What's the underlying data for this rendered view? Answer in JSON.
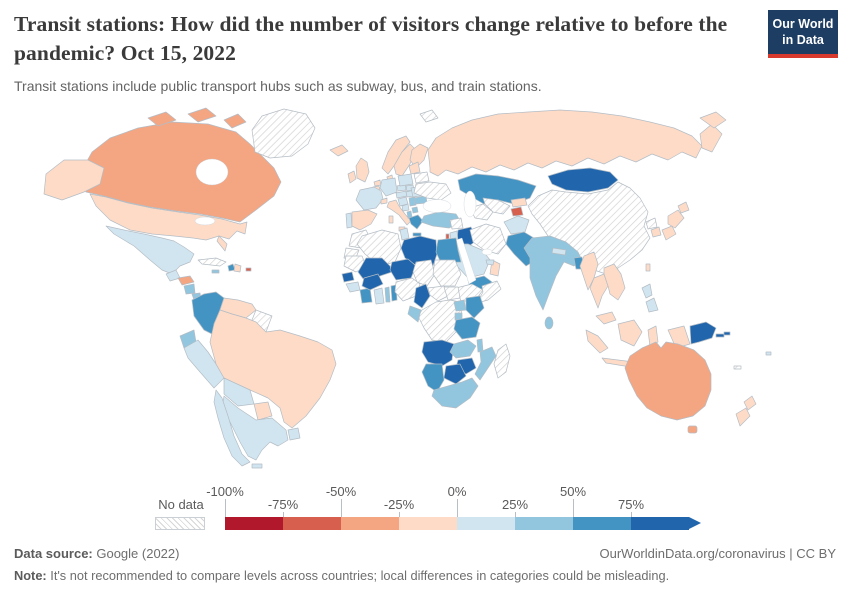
{
  "header": {
    "title": "Transit stations: How did the number of visitors change relative to before the pandemic? Oct 15, 2022",
    "subtitle": "Transit stations include public transport hubs such as subway, bus, and train stations.",
    "logo_line1": "Our World",
    "logo_line2": "in Data",
    "logo_bg": "#1d3d63",
    "logo_accent": "#d93a2e"
  },
  "legend": {
    "no_data_label": "No data",
    "tick_labels": [
      "-100%",
      "-75%",
      "-50%",
      "-25%",
      "0%",
      "25%",
      "50%",
      "75%"
    ]
  },
  "footer": {
    "source_label": "Data source:",
    "source_value": " Google (2022)",
    "credit": "OurWorldinData.org/coronavirus | CC BY",
    "note_label": "Note:",
    "note_value": " It's not recommended to compare levels across countries; local differences in categories could be misleading."
  },
  "chart_data": {
    "type": "choropleth",
    "title": "Transit stations: How did the number of visitors change relative to before the pandemic?",
    "date": "Oct 15, 2022",
    "unit": "% change in visitors vs pre-pandemic baseline",
    "legend_position": "bottom",
    "no_data": {
      "label": "No data",
      "pattern": "diagonal-hatch"
    },
    "bins": [
      {
        "label": "-100% to -75%",
        "color": "#b2182b"
      },
      {
        "label": "-75% to -50%",
        "color": "#d6604d"
      },
      {
        "label": "-50% to -25%",
        "color": "#f4a582"
      },
      {
        "label": "-25% to 0%",
        "color": "#fddbc7"
      },
      {
        "label": "0% to 25%",
        "color": "#d1e5f0"
      },
      {
        "label": "25% to 50%",
        "color": "#92c5de"
      },
      {
        "label": "50% to 75%",
        "color": "#4393c3"
      },
      {
        "label": "75%+",
        "color": "#2166ac"
      }
    ],
    "countries": {
      "Canada": "-50% to -25%",
      "United States": "-25% to 0%",
      "Greenland": "No data",
      "Mexico": "0% to 25%",
      "Guatemala": "0% to 25%",
      "Honduras": "-50% to -25%",
      "Nicaragua": "25% to 50%",
      "Costa Rica": "25% to 50%",
      "Panama": "50% to 75%",
      "Cuba": "No data",
      "Jamaica": "25% to 50%",
      "Haiti": "50% to 75%",
      "Dominican Republic": "-25% to 0%",
      "Puerto Rico": "-75% to -50%",
      "Colombia": "50% to 75%",
      "Venezuela": "-25% to 0%",
      "Guyana": "No data",
      "Ecuador": "25% to 50%",
      "Peru": "0% to 25%",
      "Brazil": "-25% to 0%",
      "Bolivia": "0% to 25%",
      "Paraguay": "-25% to 0%",
      "Uruguay": "0% to 25%",
      "Argentina": "0% to 25%",
      "Chile": "0% to 25%",
      "Iceland": "-25% to 0%",
      "Ireland": "-25% to 0%",
      "United Kingdom": "-25% to 0%",
      "Portugal": "0% to 25%",
      "Spain": "-25% to 0%",
      "France": "0% to 25%",
      "Belgium": "-25% to 0%",
      "Netherlands": "-25% to 0%",
      "Germany": "0% to 25%",
      "Denmark": "-25% to 0%",
      "Norway": "-25% to 0%",
      "Sweden": "-25% to 0%",
      "Finland": "-25% to 0%",
      "Estonia": "-25% to 0%",
      "Switzerland": "-25% to 0%",
      "Czechia": "0% to 25%",
      "Austria": "0% to 25%",
      "Poland": "0% to 25%",
      "Slovakia": "0% to 25%",
      "Hungary": "0% to 25%",
      "Croatia": "0% to 25%",
      "Bosnia and Herzegovina": "0% to 25%",
      "Serbia": "25% to 50%",
      "Albania": "25% to 50%",
      "North Macedonia": "25% to 50%",
      "Greece": "50% to 75%",
      "Romania": "0% to 25%",
      "Bulgaria": "25% to 50%",
      "Belarus": "No data",
      "Ukraine": "No data",
      "Italy": "-25% to 0%",
      "Russia": "-25% to 0%",
      "Turkey": "25% to 50%",
      "Kazakhstan": "50% to 75%",
      "Turkmenistan": "No data",
      "Uzbekistan": "No data",
      "Kyrgyzstan": "-25% to 0%",
      "Tajikistan": "-75% to -50%",
      "Mongolia": "75%+",
      "China": "No data",
      "Afghanistan": "0% to 25%",
      "Pakistan": "50% to 75%",
      "India": "25% to 50%",
      "Nepal": "0% to 25%",
      "Bangladesh": "50% to 75%",
      "Sri Lanka": "25% to 50%",
      "Myanmar": "-25% to 0%",
      "Thailand": "-25% to 0%",
      "Vietnam": "-25% to 0%",
      "Malaysia": "-25% to 0%",
      "Indonesia": "-25% to 0%",
      "Philippines": "0% to 25%",
      "Taiwan": "-25% to 0%",
      "North Korea": "No data",
      "South Korea": "-25% to 0%",
      "Japan": "-25% to 0%",
      "Iran": "No data",
      "Iraq": "75%+",
      "Syria": "No data",
      "Jordan": "0% to 25%",
      "Israel": "-75% to -50%",
      "Saudi Arabia": "0% to 25%",
      "Yemen": "50% to 75%",
      "Oman": "-25% to 0%",
      "United Arab Emirates": "0% to 25%",
      "Egypt": "50% to 75%",
      "Libya": "75%+",
      "Tunisia": "0% to 25%",
      "Algeria": "No data",
      "Morocco": "No data",
      "Western Sahara": "No data",
      "Mauritania": "No data",
      "Mali": "75%+",
      "Niger": "75%+",
      "Chad": "No data",
      "Sudan": "No data",
      "South Sudan": "No data",
      "Ethiopia": "No data",
      "Somalia": "No data",
      "Senegal": "75%+",
      "Guinea": "0% to 25%",
      "Cote d'Ivoire": "50% to 75%",
      "Ghana": "0% to 25%",
      "Togo": "25% to 50%",
      "Benin": "50% to 75%",
      "Burkina Faso": "75%+",
      "Nigeria": "No data",
      "Cameroon": "75%+",
      "Central African Republic": "No data",
      "Democratic Republic of Congo": "No data",
      "Gabon": "25% to 50%",
      "Uganda": "25% to 50%",
      "Kenya": "50% to 75%",
      "Rwanda": "25% to 50%",
      "Tanzania": "50% to 75%",
      "Malawi": "25% to 50%",
      "Angola": "75%+",
      "Zambia": "25% to 50%",
      "Mozambique": "25% to 50%",
      "Zimbabwe": "75%+",
      "Botswana": "75%+",
      "Namibia": "50% to 75%",
      "South Africa": "25% to 50%",
      "Madagascar": "No data",
      "Svalbard": "No data",
      "Australia": "-50% to -25%",
      "New Zealand": "-25% to 0%",
      "Papua New Guinea": "75%+",
      "Fiji": "0% to 25%",
      "Solomon Islands": "75%+",
      "New Caledonia": "No data"
    }
  }
}
